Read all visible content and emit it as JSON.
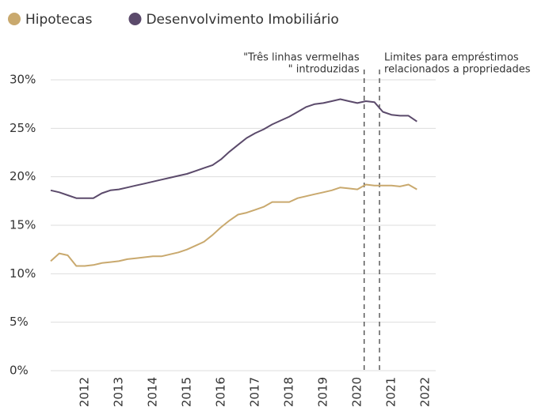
{
  "chart_data": {
    "type": "line",
    "x": [
      2011,
      2011.25,
      2011.5,
      2011.75,
      2012,
      2012.25,
      2012.5,
      2012.75,
      2013,
      2013.25,
      2013.5,
      2013.75,
      2014,
      2014.25,
      2014.5,
      2014.75,
      2015,
      2015.25,
      2015.5,
      2015.75,
      2016,
      2016.25,
      2016.5,
      2016.75,
      2017,
      2017.25,
      2017.5,
      2017.75,
      2018,
      2018.25,
      2018.5,
      2018.75,
      2019,
      2019.25,
      2019.5,
      2019.75,
      2020,
      2020.25,
      2020.5,
      2020.75,
      2021,
      2021.25,
      2021.5,
      2021.75
    ],
    "series": [
      {
        "name": "Hipotecas",
        "color": "#c9a96e",
        "values": [
          11.3,
          12.1,
          11.9,
          10.8,
          10.8,
          10.9,
          11.1,
          11.2,
          11.3,
          11.5,
          11.6,
          11.7,
          11.8,
          11.8,
          12.0,
          12.2,
          12.5,
          12.9,
          13.3,
          14.0,
          14.8,
          15.5,
          16.1,
          16.3,
          16.6,
          16.9,
          17.4,
          17.4,
          17.4,
          17.8,
          18.0,
          18.2,
          18.4,
          18.6,
          18.9,
          18.8,
          18.7,
          19.2,
          19.1,
          19.1,
          19.1,
          19.0,
          19.2,
          18.7
        ]
      },
      {
        "name": "Desenvolvimento Imobiliário",
        "color": "#5b4a6b",
        "values": [
          18.6,
          18.4,
          18.1,
          17.8,
          17.8,
          17.8,
          18.3,
          18.6,
          18.7,
          18.9,
          19.1,
          19.3,
          19.5,
          19.7,
          19.9,
          20.1,
          20.3,
          20.6,
          20.9,
          21.2,
          21.8,
          22.6,
          23.3,
          24.0,
          24.5,
          24.9,
          25.4,
          25.8,
          26.2,
          26.7,
          27.2,
          27.5,
          27.6,
          27.8,
          28.0,
          27.8,
          27.6,
          27.8,
          27.7,
          26.7,
          26.4,
          26.3,
          26.3,
          25.7
        ]
      }
    ],
    "xlim": [
      2011,
      2022.3
    ],
    "xticks": [
      2012,
      2013,
      2014,
      2015,
      2016,
      2017,
      2018,
      2019,
      2020,
      2021,
      2022
    ],
    "ylim": [
      0,
      30
    ],
    "yticks": [
      {
        "value": 0,
        "label": "0%"
      },
      {
        "value": 5,
        "label": "5%"
      },
      {
        "value": 10,
        "label": "10%"
      },
      {
        "value": 15,
        "label": "15%"
      },
      {
        "value": 20,
        "label": "20%"
      },
      {
        "value": 25,
        "label": "25%"
      },
      {
        "value": 30,
        "label": "30%"
      }
    ],
    "grid": true,
    "annotations": [
      {
        "x": 2020.2,
        "lines": [
          "\"Três linhas vermelhas",
          "\" introduzidas"
        ],
        "align": "right"
      },
      {
        "x": 2020.65,
        "lines": [
          "Limites para empréstimos",
          "relacionados a propriedades"
        ],
        "align": "left"
      }
    ]
  }
}
